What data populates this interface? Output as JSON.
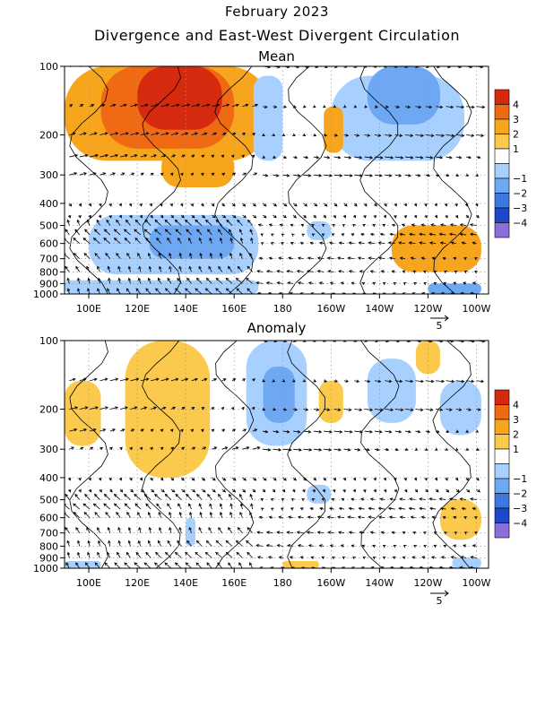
{
  "title": "February 2023",
  "subtitle": "Divergence and East-West Divergent Circulation",
  "chart_data": [
    {
      "type": "heatmap",
      "panel": "Mean",
      "x_ticks": [
        "100E",
        "120E",
        "140E",
        "160E",
        "180",
        "160W",
        "140W",
        "120W",
        "100W"
      ],
      "x_range": [
        90,
        265
      ],
      "y_ticks": [
        "100",
        "200",
        "300",
        "400",
        "500",
        "600",
        "700",
        "800",
        "900",
        "1000"
      ],
      "y_range": [
        1000,
        100
      ],
      "y_scale": "log",
      "vector_scale_label": "5",
      "colorbar": {
        "labels": [
          "4",
          "3",
          "2",
          "1",
          "−1",
          "−2",
          "−3",
          "−4"
        ],
        "colors": [
          "#d62a0e",
          "#f06a14",
          "#f8a51e",
          "#fbc94c",
          "#ffffff",
          "#a8d0ff",
          "#6ea8f2",
          "#3c78e0",
          "#1e46c8",
          "#8a70d8"
        ]
      },
      "regions": [
        {
          "lon": [
            90,
            175
          ],
          "p": [
            100,
            260
          ],
          "level": 2
        },
        {
          "lon": [
            105,
            160
          ],
          "p": [
            100,
            230
          ],
          "level": 3
        },
        {
          "lon": [
            120,
            155
          ],
          "p": [
            100,
            190
          ],
          "level": 4
        },
        {
          "lon": [
            130,
            160
          ],
          "p": [
            230,
            340
          ],
          "level": 2
        },
        {
          "lon": [
            200,
            255
          ],
          "p": [
            110,
            260
          ],
          "level": -1
        },
        {
          "lon": [
            215,
            245
          ],
          "p": [
            100,
            180
          ],
          "level": -2
        },
        {
          "lon": [
            168,
            180
          ],
          "p": [
            110,
            260
          ],
          "level": -1
        },
        {
          "lon": [
            197,
            205
          ],
          "p": [
            150,
            240
          ],
          "level": 2
        },
        {
          "lon": [
            190,
            200
          ],
          "p": [
            480,
            580
          ],
          "level": -1
        },
        {
          "lon": [
            100,
            170
          ],
          "p": [
            450,
            820
          ],
          "level": -1
        },
        {
          "lon": [
            125,
            160
          ],
          "p": [
            500,
            700
          ],
          "level": -2
        },
        {
          "lon": [
            90,
            170
          ],
          "p": [
            870,
            1000
          ],
          "level": -1
        },
        {
          "lon": [
            225,
            262
          ],
          "p": [
            500,
            800
          ],
          "level": 2
        },
        {
          "lon": [
            240,
            262
          ],
          "p": [
            900,
            1000
          ],
          "level": -2
        }
      ]
    },
    {
      "type": "heatmap",
      "panel": "Anomaly",
      "x_ticks": [
        "100E",
        "120E",
        "140E",
        "160E",
        "180",
        "160W",
        "140W",
        "120W",
        "100W"
      ],
      "x_range": [
        90,
        265
      ],
      "y_ticks": [
        "100",
        "200",
        "300",
        "400",
        "500",
        "600",
        "700",
        "800",
        "900",
        "1000"
      ],
      "y_range": [
        1000,
        100
      ],
      "y_scale": "log",
      "vector_scale_label": "5",
      "colorbar": {
        "labels": [
          "4",
          "3",
          "2",
          "1",
          "−1",
          "−2",
          "−3",
          "−4"
        ],
        "colors": [
          "#d62a0e",
          "#f06a14",
          "#f8a51e",
          "#fbc94c",
          "#ffffff",
          "#a8d0ff",
          "#6ea8f2",
          "#3c78e0",
          "#1e46c8",
          "#8a70d8"
        ]
      },
      "regions": [
        {
          "lon": [
            115,
            150
          ],
          "p": [
            100,
            400
          ],
          "level": 1
        },
        {
          "lon": [
            90,
            105
          ],
          "p": [
            150,
            290
          ],
          "level": 1
        },
        {
          "lon": [
            165,
            190
          ],
          "p": [
            100,
            290
          ],
          "level": -1
        },
        {
          "lon": [
            172,
            185
          ],
          "p": [
            130,
            230
          ],
          "level": -2
        },
        {
          "lon": [
            195,
            205
          ],
          "p": [
            150,
            230
          ],
          "level": 1
        },
        {
          "lon": [
            215,
            235
          ],
          "p": [
            120,
            230
          ],
          "level": -1
        },
        {
          "lon": [
            235,
            245
          ],
          "p": [
            100,
            140
          ],
          "level": 1
        },
        {
          "lon": [
            245,
            262
          ],
          "p": [
            150,
            260
          ],
          "level": -1
        },
        {
          "lon": [
            190,
            200
          ],
          "p": [
            430,
            520
          ],
          "level": -1
        },
        {
          "lon": [
            140,
            144
          ],
          "p": [
            600,
            800
          ],
          "level": -1
        },
        {
          "lon": [
            245,
            262
          ],
          "p": [
            500,
            750
          ],
          "level": 1
        },
        {
          "lon": [
            180,
            195
          ],
          "p": [
            930,
            1000
          ],
          "level": 1
        },
        {
          "lon": [
            90,
            105
          ],
          "p": [
            930,
            1000
          ],
          "level": -1
        },
        {
          "lon": [
            250,
            262
          ],
          "p": [
            900,
            1000
          ],
          "level": -1
        }
      ]
    }
  ]
}
